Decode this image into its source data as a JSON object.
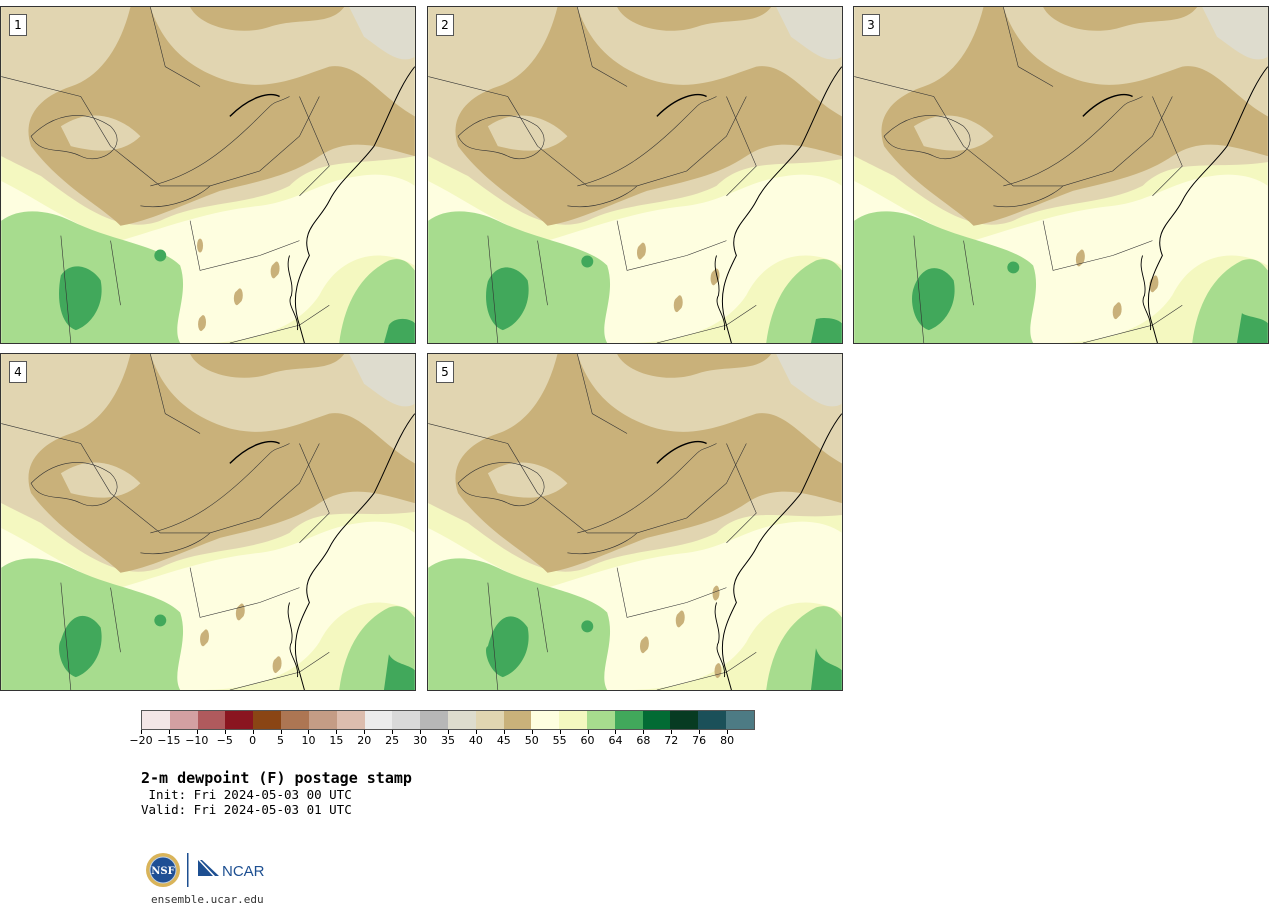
{
  "panels": [
    {
      "label": "1",
      "variant": 0
    },
    {
      "label": "2",
      "variant": 1
    },
    {
      "label": "3",
      "variant": 2
    },
    {
      "label": "4",
      "variant": 3
    },
    {
      "label": "5",
      "variant": 4
    }
  ],
  "colorbar": {
    "colors": [
      "#f3e6e6",
      "#d3a0a2",
      "#b05a5d",
      "#8a1520",
      "#8a4514",
      "#ad7653",
      "#c49c85",
      "#dcbdae",
      "#ececec",
      "#d9d9d9",
      "#b7b7b7",
      "#dedcce",
      "#e1d5b1",
      "#c9b17a",
      "#fefee0",
      "#f4f8c0",
      "#a7dc8e",
      "#41a85b",
      "#036b34",
      "#073b22",
      "#1b5059",
      "#4d7b84"
    ],
    "tick_labels": [
      "−20",
      "−15",
      "−10",
      "−5",
      "0",
      "5",
      "10",
      "15",
      "20",
      "25",
      "30",
      "35",
      "40",
      "45",
      "50",
      "55",
      "60",
      "64",
      "68",
      "72",
      "76",
      "80"
    ]
  },
  "title": "2-m dewpoint (F) postage stamp",
  "init": " Init: Fri 2024-05-03 00 UTC",
  "valid": "Valid: Fri 2024-05-03 01 UTC",
  "logo": {
    "left": "NSF",
    "right": "NCAR"
  },
  "site": "ensemble.ucar.edu"
}
